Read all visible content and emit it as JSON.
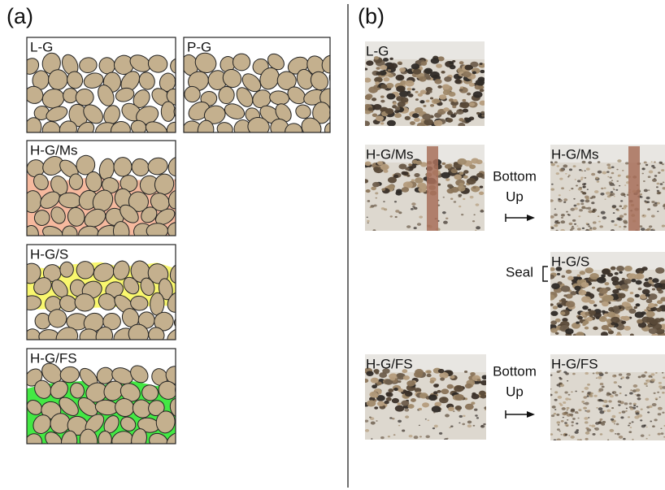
{
  "panel_a": {
    "label": "(a)",
    "boxes": [
      {
        "label": "L-G"
      },
      {
        "label": "P-G"
      },
      {
        "label": "H-G/Ms"
      },
      {
        "label": "H-G/S"
      },
      {
        "label": "H-G/FS"
      }
    ]
  },
  "panel_b": {
    "label": "(b)",
    "photos": [
      {
        "label": "L-G"
      },
      {
        "label": "H-G/Ms"
      },
      {
        "label": "H-G/Ms"
      },
      {
        "label": "H-G/S"
      },
      {
        "label": "H-G/FS"
      },
      {
        "label": "H-G/FS"
      }
    ],
    "arrows": [
      {
        "lines": [
          "Bottom",
          "Up"
        ]
      },
      {
        "lines": [
          "Bottom",
          "Up"
        ]
      }
    ],
    "seal": "Seal"
  }
}
